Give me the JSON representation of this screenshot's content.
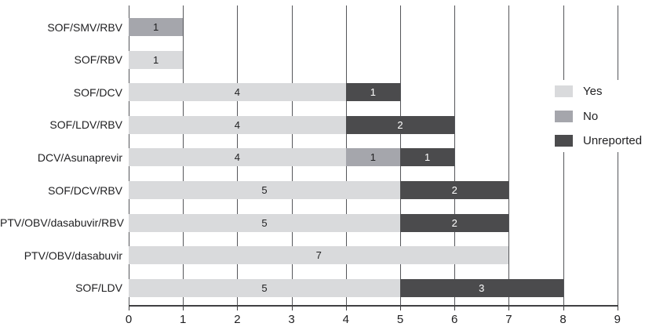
{
  "chart_data": {
    "type": "bar",
    "orientation": "horizontal",
    "stacked": true,
    "title": "",
    "xlabel": "",
    "ylabel": "",
    "categories": [
      "SOF/SMV/RBV",
      "SOF/RBV",
      "SOF/DCV",
      "SOF/LDV/RBV",
      "DCV/Asunaprevir",
      "SOF/DCV/RBV",
      "PTV/OBV/dasabuvir/RBV",
      "PTV/OBV/dasabuvir",
      "SOF/LDV"
    ],
    "series": [
      {
        "name": "Yes",
        "color": "#d9dadc",
        "label_color": "#1f1f21",
        "values": [
          0,
          1,
          4,
          4,
          4,
          5,
          5,
          7,
          5
        ]
      },
      {
        "name": "No",
        "color": "#a5a6ac",
        "label_color": "#1f1f21",
        "values": [
          1,
          0,
          0,
          0,
          1,
          0,
          0,
          0,
          0
        ]
      },
      {
        "name": "Unreported",
        "color": "#4b4b4d",
        "label_color": "#ffffff",
        "values": [
          0,
          0,
          1,
          2,
          1,
          2,
          2,
          0,
          3
        ]
      }
    ],
    "totals": [
      1,
      1,
      5,
      6,
      6,
      7,
      7,
      7,
      8
    ],
    "xlim": [
      0,
      9
    ],
    "x_ticks": [
      "0",
      "1",
      "2",
      "3",
      "4",
      "5",
      "6",
      "7",
      "8",
      "9"
    ],
    "grid": "vertical",
    "legend": {
      "position": "right",
      "entries": [
        "Yes",
        "No",
        "Unreported"
      ]
    }
  }
}
